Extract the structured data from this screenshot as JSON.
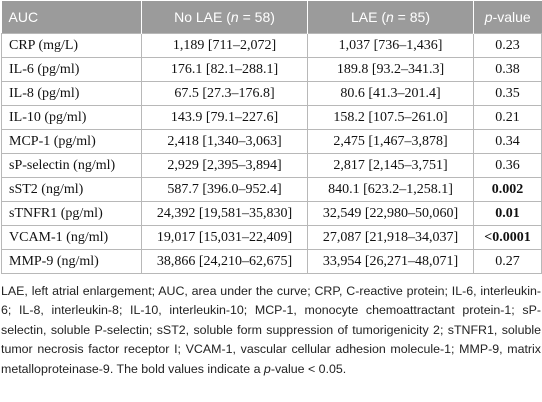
{
  "table": {
    "headers": [
      "AUC",
      "No LAE (",
      "n",
      " = 58)",
      "LAE (",
      "n",
      " = 85)",
      "p",
      "-value"
    ],
    "header_cells": {
      "c1": "AUC",
      "c2_pre": "No LAE (",
      "c2_n": "n",
      "c2_post": " = 58)",
      "c3_pre": "LAE (",
      "c3_n": "n",
      "c3_post": " = 85)",
      "c4_p": "p",
      "c4_post": "-value"
    },
    "rows": [
      {
        "marker": "CRP (mg/L)",
        "no_lae": "1,189 [711–2,072]",
        "lae": "1,037 [736–1,436]",
        "p": "0.23",
        "bold": false
      },
      {
        "marker": "IL-6 (pg/ml)",
        "no_lae": "176.1 [82.1–288.1]",
        "lae": "189.8 [93.2–341.3]",
        "p": "0.38",
        "bold": false
      },
      {
        "marker": "IL-8 (pg/ml)",
        "no_lae": "67.5 [27.3–176.8]",
        "lae": "80.6 [41.3–201.4]",
        "p": "0.35",
        "bold": false
      },
      {
        "marker": "IL-10 (pg/ml)",
        "no_lae": "143.9 [79.1–227.6]",
        "lae": "158.2 [107.5–261.0]",
        "p": "0.21",
        "bold": false
      },
      {
        "marker": "MCP-1 (pg/ml)",
        "no_lae": "2,418 [1,340–3,063]",
        "lae": "2,475 [1,467–3,878]",
        "p": "0.34",
        "bold": false
      },
      {
        "marker": "sP-selectin (ng/ml)",
        "no_lae": "2,929 [2,395–3,894]",
        "lae": "2,817 [2,145–3,751]",
        "p": "0.36",
        "bold": false
      },
      {
        "marker": "sST2 (ng/ml)",
        "no_lae": "587.7 [396.0–952.4]",
        "lae": "840.1 [623.2–1,258.1]",
        "p": "0.002",
        "bold": true
      },
      {
        "marker": "sTNFR1 (pg/ml)",
        "no_lae": "24,392 [19,581–35,830]",
        "lae": "32,549 [22,980–50,060]",
        "p": "0.01",
        "bold": true
      },
      {
        "marker": "VCAM-1 (ng/ml)",
        "no_lae": "19,017 [15,031–22,409]",
        "lae": "27,087 [21,918–34,037]",
        "p": "<0.0001",
        "bold": true
      },
      {
        "marker": "MMP-9 (ng/ml)",
        "no_lae": "38,866 [24,210–62,675]",
        "lae": "33,954 [26,271–48,071]",
        "p": "0.27",
        "bold": false
      }
    ]
  },
  "footnote": {
    "abbreviations": "LAE, left atrial enlargement; AUC, area under the curve; CRP, C-reactive protein; IL-6, interleukin-6; IL-8, interleukin-8; IL-10, interleukin-10; MCP-1, monocyte chemoattractant protein-1; sP-selectin, soluble P-selectin; sST2, soluble form suppression of tumorigenicity 2; sTNFR1, soluble tumor necrosis factor receptor I; VCAM-1, vascular cellular adhesion molecule-1; MMP-9, matrix metalloproteinase-9.",
    "bold_pre": "The bold values indicate a ",
    "bold_p": "p",
    "bold_post": "-value < 0.05."
  }
}
